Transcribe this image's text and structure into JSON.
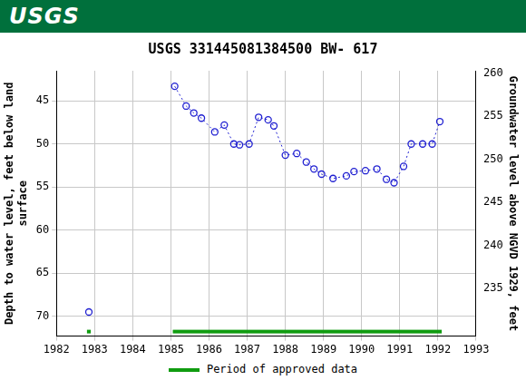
{
  "header": {
    "logo": "USGS"
  },
  "chart_data": {
    "type": "line",
    "title": "USGS 331445081384500 BW- 617",
    "ylabel": [
      "Depth to water level, feet below land",
      "surface"
    ],
    "y2label": "Groundwater level above NGVD 1929, feet",
    "x": [
      1982.85,
      1984.0,
      1985.1,
      1985.4,
      1985.6,
      1985.8,
      1986.15,
      1986.4,
      1986.65,
      1986.8,
      1987.05,
      1987.3,
      1987.55,
      1987.7,
      1988.0,
      1988.3,
      1988.55,
      1988.75,
      1988.95,
      1989.25,
      1989.6,
      1989.8,
      1990.1,
      1990.4,
      1990.65,
      1990.85,
      1991.1,
      1991.3,
      1991.6,
      1991.85,
      1992.05
    ],
    "values": [
      69.5,
      null,
      43.3,
      45.6,
      46.4,
      47.0,
      48.6,
      47.8,
      50.0,
      50.1,
      50.0,
      46.9,
      47.2,
      47.9,
      51.3,
      51.1,
      52.1,
      52.9,
      53.5,
      54.0,
      53.7,
      53.2,
      53.1,
      52.9,
      54.1,
      54.5,
      52.6,
      50.0,
      50.0,
      50.0,
      47.4
    ],
    "color": "#1f1fd1",
    "marker": "circle",
    "line_style": "dotted",
    "xlim": [
      1982,
      1993
    ],
    "xticks": [
      1982,
      1983,
      1984,
      1985,
      1986,
      1987,
      1988,
      1989,
      1990,
      1991,
      1992,
      1993
    ],
    "ylim": [
      72.3,
      41.5
    ],
    "yticks": [
      45,
      50,
      55,
      60,
      65,
      70
    ],
    "y2lim": [
      229.5,
      260.3
    ],
    "y2ticks": [
      235,
      240,
      245,
      250,
      255,
      260
    ],
    "grid": true,
    "legend": "bottom",
    "approved_periods": {
      "name": "Period of approved data",
      "color": "#109c10",
      "ranges": [
        [
          1982.8,
          1982.9
        ],
        [
          1985.05,
          1992.1
        ]
      ]
    }
  }
}
